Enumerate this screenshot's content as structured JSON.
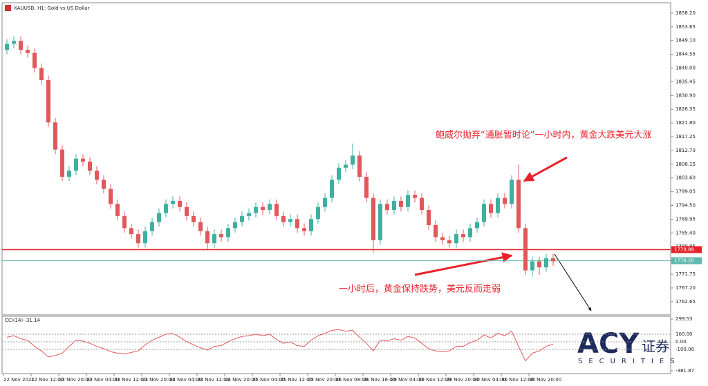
{
  "chart_data": {
    "type": "candlestick",
    "title": "XAUUSD, H1:  Gold vs US Dollar",
    "open": [
      1846,
      1848,
      1849,
      1846,
      1845,
      1840,
      1836,
      1822,
      1813,
      1804,
      1806,
      1810,
      1809,
      1806,
      1803,
      1800,
      1795,
      1791,
      1787,
      1785,
      1782,
      1786,
      1789,
      1792,
      1795,
      1796,
      1794,
      1791,
      1789,
      1786,
      1782,
      1785,
      1784,
      1787,
      1789,
      1791,
      1792,
      1794,
      1793,
      1795,
      1791,
      1789,
      1790,
      1787,
      1786,
      1790,
      1794,
      1797,
      1803,
      1807,
      1808,
      1811,
      1804,
      1797,
      1783,
      1795,
      1793,
      1796,
      1794,
      1798,
      1797,
      1793,
      1788,
      1784,
      1783,
      1782,
      1785,
      1784,
      1787,
      1789,
      1795,
      1792,
      1797,
      1795,
      1803,
      1787,
      1773,
      1776,
      1774,
      1777
    ],
    "high": [
      1849.5,
      1850.5,
      1850.5,
      1847.5,
      1846.5,
      1841.5,
      1837.5,
      1823.5,
      1814.5,
      1807.5,
      1811.5,
      1811.5,
      1810.5,
      1807.5,
      1804.5,
      1801.5,
      1796.5,
      1792.5,
      1788.5,
      1786.5,
      1787.5,
      1790.5,
      1793.5,
      1796.5,
      1797.5,
      1797.5,
      1795.5,
      1792.5,
      1790.5,
      1787.5,
      1786.5,
      1786.5,
      1788.5,
      1790.5,
      1792.5,
      1793.5,
      1795.5,
      1795.5,
      1796.5,
      1796.5,
      1792.5,
      1791.5,
      1791.5,
      1788.5,
      1791.5,
      1795.5,
      1798.5,
      1804.5,
      1808.5,
      1809.5,
      1815,
      1812.5,
      1805.5,
      1798.5,
      1796.5,
      1796.5,
      1797.5,
      1797.5,
      1799.5,
      1799.5,
      1798.5,
      1794.5,
      1789.5,
      1785.5,
      1784.5,
      1786.5,
      1786.5,
      1788.5,
      1790.5,
      1796.5,
      1796.5,
      1798.5,
      1798.5,
      1804.5,
      1808,
      1788.5,
      1777.5,
      1777.5,
      1778.5,
      1778.5
    ],
    "low": [
      1844.5,
      1846.5,
      1844.5,
      1843.5,
      1838.5,
      1834.5,
      1820.5,
      1811.5,
      1802.5,
      1802.5,
      1804.5,
      1807.5,
      1804.5,
      1801.5,
      1798.5,
      1793.5,
      1789.5,
      1785.5,
      1783.5,
      1780.5,
      1780.5,
      1784.5,
      1787.5,
      1790.5,
      1793.5,
      1792.5,
      1789.5,
      1787.5,
      1784.5,
      1780,
      1780.5,
      1782.5,
      1782.5,
      1785.5,
      1787.5,
      1789.5,
      1790.5,
      1791.5,
      1791.5,
      1789.5,
      1787.5,
      1787.5,
      1785.5,
      1784.5,
      1784.5,
      1788.5,
      1792.5,
      1795.5,
      1801.5,
      1805.5,
      1806.5,
      1802.5,
      1795.5,
      1779,
      1781.5,
      1791.5,
      1791.5,
      1792.5,
      1792.5,
      1795.5,
      1791.5,
      1786.5,
      1782.5,
      1781.5,
      1780.5,
      1780.5,
      1782.5,
      1782.5,
      1785.5,
      1787.5,
      1790.5,
      1790.5,
      1793.5,
      1793.5,
      1785.5,
      1771.5,
      1771,
      1771.5,
      1772.5,
      1774.5
    ],
    "close": [
      1848,
      1849,
      1846,
      1845,
      1840,
      1836,
      1822,
      1813,
      1804,
      1806,
      1810,
      1809,
      1806,
      1803,
      1800,
      1795,
      1791,
      1787,
      1785,
      1782,
      1786,
      1789,
      1792,
      1795,
      1796,
      1794,
      1791,
      1789,
      1786,
      1782,
      1785,
      1784,
      1787,
      1789,
      1791,
      1792,
      1794,
      1793,
      1795,
      1791,
      1789,
      1790,
      1787,
      1786,
      1790,
      1794,
      1797,
      1803,
      1807,
      1808,
      1811,
      1804,
      1797,
      1783,
      1795,
      1793,
      1796,
      1794,
      1798,
      1797,
      1793,
      1788,
      1784,
      1783,
      1782,
      1785,
      1784,
      1787,
      1789,
      1795,
      1792,
      1797,
      1795,
      1803,
      1787,
      1773,
      1776,
      1774,
      1777,
      1776
    ],
    "up_color": "#3fb09f",
    "down_color": "#e0585a",
    "ylim": [
      1758.5,
      1860.7
    ],
    "yticks": [
      {
        "value": 1858.2,
        "label": "1858.20"
      },
      1853.65,
      {
        "value": 1849.1,
        "label": "1849.10"
      },
      1844.55,
      {
        "value": 1840,
        "label": "1840.00"
      },
      1835.45,
      {
        "value": 1830.9,
        "label": "1830.90"
      },
      1826.35,
      {
        "value": 1821.8,
        "label": "1821.80"
      },
      1817.25,
      {
        "value": 1812.7,
        "label": "1812.70"
      },
      1808.15,
      {
        "value": 1803.6,
        "label": "1803.60"
      },
      1799.05,
      {
        "value": 1794.5,
        "label": "1794.50"
      },
      1789.95,
      {
        "value": 1785.4,
        "label": "1785.40"
      },
      1780.85,
      {
        "value": 1776.3,
        "label": "1776.30"
      },
      1771.75,
      {
        "value": 1767.2,
        "label": "1767.20"
      },
      1762.65
    ],
    "price_lines": [
      1779.88,
      {
        "value": 1776.2,
        "label": "1776.20"
      }
    ],
    "price_line_colors": [
      "#e8222a",
      "#5fb7ae"
    ],
    "x_labels": [
      "22 Nov 2021",
      "22 Nov 12:00",
      "22 Nov 20:00",
      "23 Nov 04:00",
      "23 Nov 12:00",
      "23 Nov 20:00",
      "24 Nov 04:00",
      "24 Nov 12:00",
      "24 Nov 20:00",
      "25 Nov 04:00",
      "25 Nov 12:00",
      "25 Nov 20:00",
      "26 Nov 08:00",
      "26 Nov 16:00",
      "29 Nov 04:00",
      "29 Nov 12:00",
      "29 Nov 20:00",
      "30 Nov 04:00",
      "30 Nov 12:00",
      "30 Nov 20:00"
    ],
    "annotations": [
      "鲍威尔抛弃“通胀暂时论”一小时内，黄金大跌美元大涨",
      "一小时后，黄金保持跌势，美元反而走弱"
    ],
    "indicator": {
      "title": "CCI(14) -31.14",
      "color": "#e0585a",
      "values": [
        60,
        80,
        40,
        20,
        -60,
        -120,
        -200,
        -180,
        -150,
        -60,
        20,
        10,
        -20,
        -60,
        -90,
        -130,
        -150,
        -160,
        -140,
        -120,
        -40,
        20,
        60,
        100,
        110,
        60,
        0,
        -40,
        -80,
        -110,
        -60,
        -50,
        0,
        40,
        70,
        80,
        100,
        80,
        100,
        30,
        -20,
        0,
        -50,
        -60,
        20,
        80,
        110,
        150,
        160,
        140,
        150,
        60,
        -20,
        -120,
        20,
        10,
        40,
        20,
        70,
        50,
        -20,
        -90,
        -120,
        -130,
        -120,
        -60,
        -60,
        -10,
        20,
        90,
        50,
        110,
        80,
        140,
        -60,
        -250,
        -150,
        -120,
        -60,
        -31.14
      ],
      "ylim": [
        -381.87,
        299.53
      ],
      "yticks": [
        299.53,
        {
          "value": 100,
          "label": "100.00"
        },
        {
          "value": 0,
          "label": "0.00"
        },
        {
          "value": -100,
          "label": "-100.00"
        },
        -381.87
      ]
    }
  },
  "logo": {
    "brand": "ACY",
    "cn": "证券",
    "sub": "SECURITIES"
  }
}
